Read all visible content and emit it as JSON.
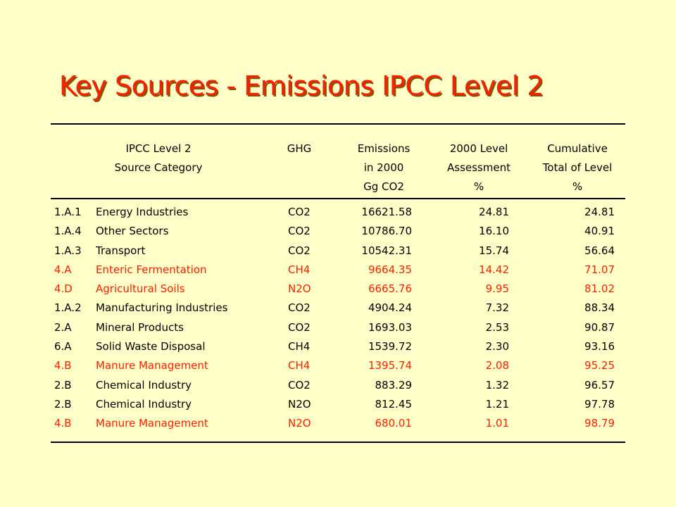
{
  "title": "Key Sources - Emissions IPCC Level 2",
  "headers": {
    "category": [
      "IPCC Level 2",
      "Source Category"
    ],
    "ghg": [
      "GHG"
    ],
    "emissions": [
      "Emissions",
      "in 2000",
      "Gg CO2"
    ],
    "level": [
      "2000 Level",
      "Assessment",
      "%"
    ],
    "cumulative": [
      "Cumulative",
      "Total of Level",
      "%"
    ]
  },
  "colors": {
    "background": "#ffffc8",
    "title": "#ff1e00",
    "key_source": "#ff1e00",
    "text": "#000000"
  },
  "rows": [
    {
      "code": "1.A.1",
      "category": "Energy Industries",
      "ghg": "CO2",
      "emissions": "16621.58",
      "level": "24.81",
      "cumulative": "24.81",
      "highlight": false
    },
    {
      "code": "1.A.4",
      "category": "Other Sectors",
      "ghg": "CO2",
      "emissions": "10786.70",
      "level": "16.10",
      "cumulative": "40.91",
      "highlight": false
    },
    {
      "code": "1.A.3",
      "category": "Transport",
      "ghg": "CO2",
      "emissions": "10542.31",
      "level": "15.74",
      "cumulative": "56.64",
      "highlight": false
    },
    {
      "code": "4.A",
      "category": "Enteric Fermentation",
      "ghg": "CH4",
      "emissions": "9664.35",
      "level": "14.42",
      "cumulative": "71.07",
      "highlight": true
    },
    {
      "code": "4.D",
      "category": "Agricultural Soils",
      "ghg": "N2O",
      "emissions": "6665.76",
      "level": "9.95",
      "cumulative": "81.02",
      "highlight": true
    },
    {
      "code": "1.A.2",
      "category": "Manufacturing Industries",
      "ghg": "CO2",
      "emissions": "4904.24",
      "level": "7.32",
      "cumulative": "88.34",
      "highlight": false
    },
    {
      "code": "2.A",
      "category": "Mineral Products",
      "ghg": "CO2",
      "emissions": "1693.03",
      "level": "2.53",
      "cumulative": "90.87",
      "highlight": false
    },
    {
      "code": "6.A",
      "category": "Solid Waste Disposal",
      "ghg": "CH4",
      "emissions": "1539.72",
      "level": "2.30",
      "cumulative": "93.16",
      "highlight": false
    },
    {
      "code": "4.B",
      "category": "Manure Management",
      "ghg": "CH4",
      "emissions": "1395.74",
      "level": "2.08",
      "cumulative": "95.25",
      "highlight": true
    },
    {
      "code": "2.B",
      "category": "Chemical Industry",
      "ghg": "CO2",
      "emissions": "883.29",
      "level": "1.32",
      "cumulative": "96.57",
      "highlight": false
    },
    {
      "code": "2.B",
      "category": "Chemical Industry",
      "ghg": "N2O",
      "emissions": "812.45",
      "level": "1.21",
      "cumulative": "97.78",
      "highlight": false
    },
    {
      "code": "4.B",
      "category": "Manure Management",
      "ghg": "N2O",
      "emissions": "680.01",
      "level": "1.01",
      "cumulative": "98.79",
      "highlight": true
    }
  ]
}
